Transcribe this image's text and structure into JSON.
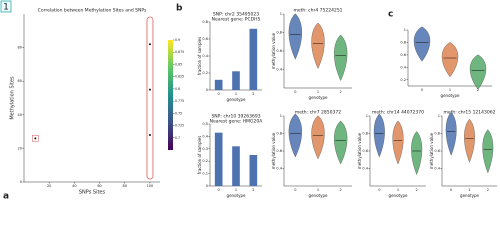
{
  "panel_labels": {
    "badge": "1",
    "a": "a",
    "b": "b",
    "c": "c"
  },
  "chart_data": [
    {
      "type": "scatter",
      "title": "Correlation between Methylation Sites and SNPs",
      "xlabel": "SNPs Sites",
      "ylabel": "Methylation Sites",
      "x": [
        9,
        100,
        100,
        100
      ],
      "y": [
        26,
        82,
        55,
        28
      ],
      "color": "#111111",
      "xlim": [
        0,
        108
      ],
      "xticks": [
        20,
        40,
        60,
        80,
        100
      ],
      "ylim": [
        0,
        100
      ],
      "yticks": [
        0,
        20,
        40,
        60,
        80
      ],
      "colorbar_range": [
        0.675,
        0.9
      ],
      "colorbar_ticks": [
        0.7,
        0.725,
        0.75,
        0.775,
        0.8,
        0.825,
        0.85,
        0.875,
        0.9
      ]
    },
    {
      "type": "bar",
      "title": "SNP: chr2 35495023",
      "subtitle": "Nearest gene: PCDH5",
      "xlabel": "genotype",
      "ylabel": "fraction of samples",
      "categories": [
        "0",
        "1",
        "2"
      ],
      "values": [
        0.12,
        0.22,
        0.72
      ],
      "color": "#4c72b0",
      "ylim": [
        0,
        0.8
      ],
      "yticks": [
        0,
        0.2,
        0.4,
        0.6,
        0.8
      ]
    },
    {
      "type": "bar",
      "title": "SNP: chr10 39263693",
      "subtitle": "Nearest gene: HMG20A",
      "xlabel": "genotype",
      "ylabel": "fraction of samples",
      "categories": [
        "0",
        "1",
        "2"
      ],
      "values": [
        0.43,
        0.32,
        0.25
      ],
      "color": "#4c72b0",
      "ylim": [
        0,
        0.5
      ],
      "yticks": [
        0,
        0.1,
        0.2,
        0.3,
        0.4,
        0.5
      ]
    },
    {
      "type": "violin",
      "title": "meth: chr4 75224251",
      "xlabel": "genotype",
      "ylabel": "methylation value",
      "categories": [
        "0",
        "1",
        "2"
      ],
      "values": [
        0.78,
        0.68,
        0.55
      ],
      "colors": [
        "#4c72b0",
        "#dd8452",
        "#55a868"
      ],
      "ylim": [
        0.2,
        1.0
      ],
      "yticks": [
        0.4,
        0.6,
        0.8,
        1.0
      ]
    },
    {
      "type": "violin",
      "title": "meth: chr7 2850372",
      "xlabel": "genotype",
      "ylabel": "methylation value",
      "categories": [
        "0",
        "1",
        "2"
      ],
      "values": [
        0.8,
        0.78,
        0.72
      ],
      "colors": [
        "#4c72b0",
        "#dd8452",
        "#55a868"
      ],
      "ylim": [
        0.2,
        1.0
      ],
      "yticks": [
        0.4,
        0.6,
        0.8,
        1.0
      ]
    },
    {
      "type": "violin",
      "title": "meth: chr14 44072370",
      "xlabel": "genotype",
      "ylabel": "methylation value",
      "categories": [
        "0",
        "1",
        "2"
      ],
      "values": [
        0.8,
        0.72,
        0.6
      ],
      "colors": [
        "#4c72b0",
        "#dd8452",
        "#55a868"
      ],
      "ylim": [
        0.2,
        1.0
      ],
      "yticks": [
        0.4,
        0.6,
        0.8,
        1.0
      ]
    },
    {
      "type": "violin",
      "title": "meth: chr15 12143062",
      "xlabel": "genotype",
      "ylabel": "methylation value",
      "categories": [
        "0",
        "1",
        "2"
      ],
      "values": [
        0.82,
        0.74,
        0.62
      ],
      "colors": [
        "#4c72b0",
        "#dd8452",
        "#55a868"
      ],
      "ylim": [
        0.2,
        1.0
      ],
      "yticks": [
        0.4,
        0.6,
        0.8,
        1.0
      ]
    },
    {
      "type": "violin",
      "xlabel": "genotype",
      "categories": [
        "0",
        "1",
        "2"
      ],
      "values": [
        0.8,
        0.55,
        0.35
      ],
      "colors": [
        "#4c72b0",
        "#dd8452",
        "#55a868"
      ],
      "ylim": [
        0.1,
        1.0
      ],
      "yticks": [
        0.2,
        0.4,
        0.6,
        0.8,
        1.0
      ]
    }
  ]
}
